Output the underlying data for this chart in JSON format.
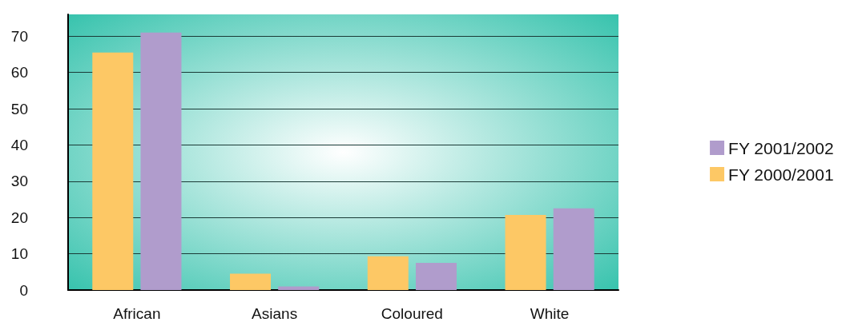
{
  "chart_data": {
    "type": "bar",
    "categories": [
      "African",
      "Asians",
      "Coloured",
      "White"
    ],
    "series": [
      {
        "name": "FY 2000/2001",
        "color": "#fdc865",
        "values": [
          65.5,
          4.5,
          9.3,
          20.7
        ]
      },
      {
        "name": "FY 2001/2002",
        "color": "#b09ccc",
        "values": [
          71,
          1,
          7.5,
          22.5
        ]
      }
    ],
    "ylim": [
      0,
      76
    ],
    "yticks": [
      0,
      10,
      20,
      30,
      40,
      50,
      60,
      70
    ],
    "grid": "y",
    "legend": "right"
  }
}
